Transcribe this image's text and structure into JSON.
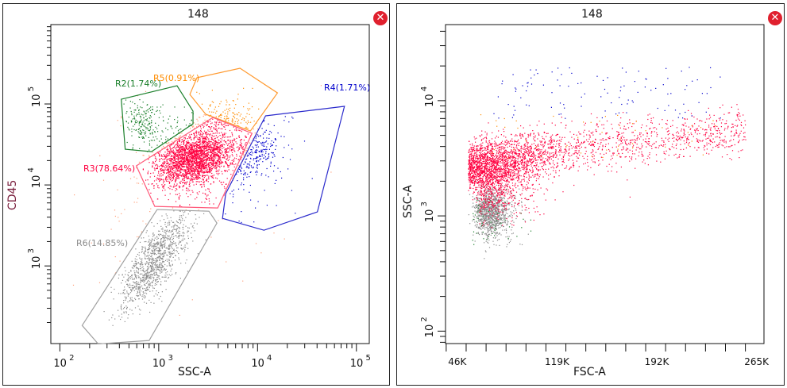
{
  "plots": [
    {
      "title": "148",
      "close_icon": "close-icon",
      "chart_data": {
        "type": "scatter",
        "xlabel": "SSC-A",
        "ylabel": "CD45",
        "x_scale": "log",
        "y_scale": "log",
        "xlim": [
          81,
          135000
        ],
        "ylim": [
          110,
          955000
        ],
        "x_tick_labels": [
          {
            "base": "10",
            "exp": "2",
            "value": 100
          },
          {
            "base": "10",
            "exp": "3",
            "value": 1000
          },
          {
            "base": "10",
            "exp": "4",
            "value": 10000
          },
          {
            "base": "10",
            "exp": "5",
            "value": 100000
          }
        ],
        "y_tick_labels": [
          {
            "base": "10",
            "exp": "3",
            "value": 1000
          },
          {
            "base": "10",
            "exp": "4",
            "value": 10000
          },
          {
            "base": "10",
            "exp": "5",
            "value": 100000
          }
        ],
        "ungated_color": "#ffa07a",
        "gates": [
          {
            "name": "R2",
            "label": "R2(1.74%)",
            "percent": 1.74,
            "color": "#1a7f2a",
            "dot_color": "#1a7f2a",
            "vertices": [
              [
                418,
                114500
              ],
              [
                1532,
                168000
              ],
              [
                2223,
                81600
              ],
              [
                2223,
                56900
              ],
              [
                845,
                25800
              ],
              [
                458,
                27600
              ]
            ]
          },
          {
            "name": "R5",
            "label": "R5(0.91%)",
            "percent": 0.91,
            "color": "#ff9a30",
            "dot_color": "#ff8c00",
            "vertices": [
              [
                2065,
                131000
              ],
              [
                2438,
                211000
              ],
              [
                6650,
                276000
              ],
              [
                15900,
                137000
              ],
              [
                8460,
                46400
              ],
              [
                2990,
                74700
              ]
            ]
          },
          {
            "name": "R3",
            "label": "R3(78.64%)",
            "percent": 78.64,
            "color": "#ff5a7a",
            "dot_color": "#ff0040",
            "vertices": [
              [
                594,
                17200
              ],
              [
                3532,
                68100
              ],
              [
                8790,
                43400
              ],
              [
                3954,
                5200
              ],
              [
                912,
                5430
              ]
            ]
          },
          {
            "name": "R4",
            "label": "R4(1.71%)",
            "percent": 1.71,
            "color": "#2a2acc",
            "dot_color": "#0000cc",
            "vertices": [
              [
                12050,
                71300
              ],
              [
                75700,
                93500
              ],
              [
                40300,
                4650
              ],
              [
                11600,
                2760
              ],
              [
                4420,
                3870
              ],
              [
                4760,
                7800
              ]
            ]
          },
          {
            "name": "R6",
            "label": "R6(14.85%)",
            "percent": 14.85,
            "color": "#a0a0a0",
            "dot_color": "#8c8c8c",
            "vertices": [
              [
                168,
                184
              ],
              [
                964,
                4970
              ],
              [
                3220,
                4740
              ],
              [
                3880,
                3380
              ],
              [
                800,
                120
              ],
              [
                244,
                109
              ]
            ]
          }
        ]
      }
    },
    {
      "title": "148",
      "close_icon": "close-icon",
      "chart_data": {
        "type": "scatter",
        "xlabel": "FSC-A",
        "ylabel": "SSC-A",
        "x_scale": "linear",
        "y_scale": "log",
        "xlim": [
          45500,
          278600
        ],
        "ylim": [
          78,
          45700
        ],
        "x_tick_labels": [
          {
            "label": "46K",
            "value": 46000
          },
          {
            "label": "119K",
            "value": 119000
          },
          {
            "label": "192K",
            "value": 192000
          },
          {
            "label": "265K",
            "value": 265000
          }
        ],
        "y_tick_labels": [
          {
            "base": "10",
            "exp": "2",
            "value": 100
          },
          {
            "base": "10",
            "exp": "3",
            "value": 1000
          },
          {
            "base": "10",
            "exp": "4",
            "value": 10000
          }
        ],
        "populations": [
          {
            "name": "R3",
            "color": "#ff0040"
          },
          {
            "name": "R6",
            "color": "#8c8c8c"
          },
          {
            "name": "R4",
            "color": "#0000cc"
          },
          {
            "name": "R2",
            "color": "#1a7f2a"
          },
          {
            "name": "R5",
            "color": "#ff8c00"
          }
        ]
      }
    }
  ]
}
